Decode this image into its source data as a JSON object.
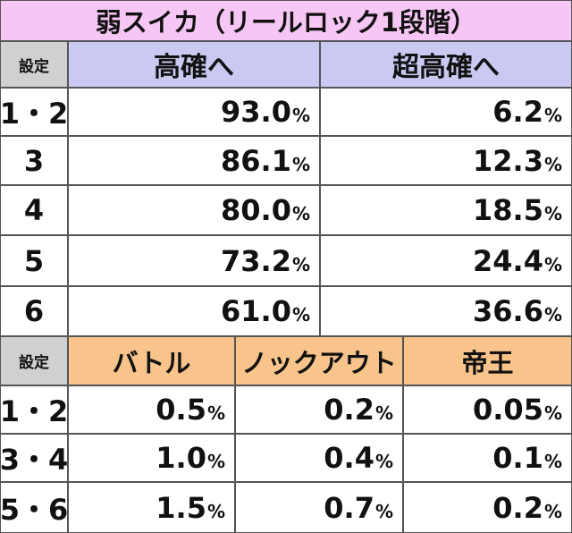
{
  "title": "弱スイカ（リールロック1段階）",
  "unit": "%",
  "table1": {
    "header": [
      "設定",
      "高確へ",
      "超高確へ"
    ],
    "rows": [
      [
        "1・2",
        "93.0",
        "6.2"
      ],
      [
        "3",
        "86.1",
        "12.3"
      ],
      [
        "4",
        "80.0",
        "18.5"
      ],
      [
        "5",
        "73.2",
        "24.4"
      ],
      [
        "6",
        "61.0",
        "36.6"
      ]
    ]
  },
  "table2": {
    "header": [
      "設定",
      "バトル",
      "ノックアウト",
      "帝王"
    ],
    "rows": [
      [
        "1・2",
        "0.5",
        "0.2",
        "0.05"
      ],
      [
        "3・4",
        "1.0",
        "0.4",
        "0.1"
      ],
      [
        "5・6",
        "1.5",
        "0.7",
        "0.2"
      ]
    ]
  }
}
